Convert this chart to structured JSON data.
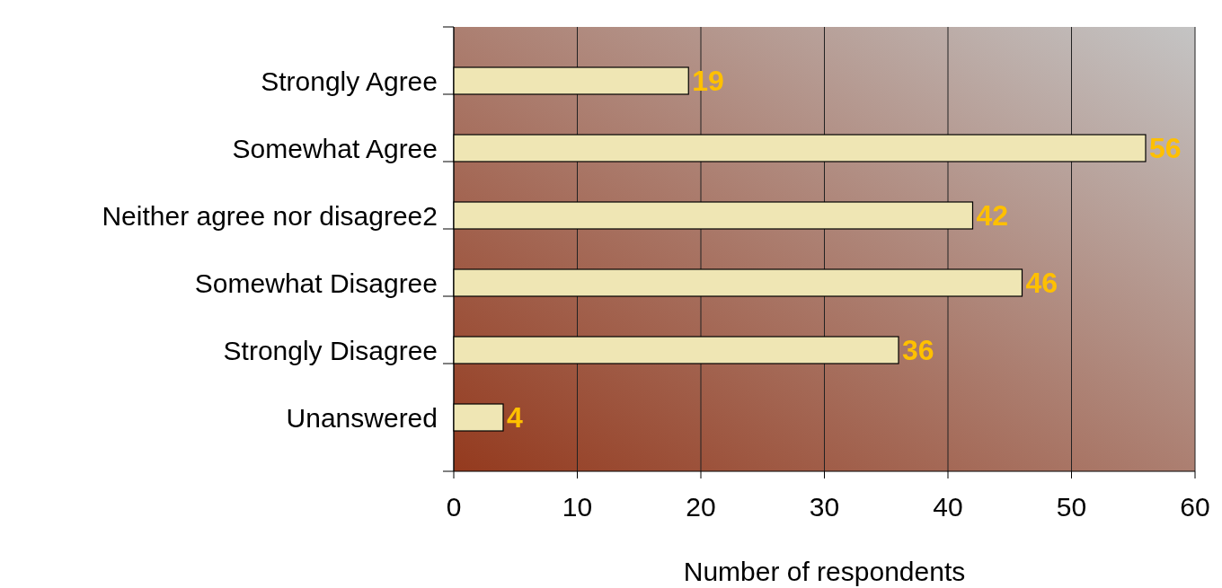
{
  "chart_data": {
    "type": "bar",
    "orientation": "horizontal",
    "categories": [
      "Strongly Agree",
      "Somewhat Agree",
      "Neither agree nor disagree2",
      "Somewhat Disagree",
      "Strongly Disagree",
      "Unanswered"
    ],
    "values": [
      19,
      56,
      42,
      46,
      36,
      4
    ],
    "color": "#efe6b4",
    "xlim": [
      0,
      60
    ],
    "xticks": [
      0,
      10,
      20,
      30,
      40,
      50,
      60
    ],
    "xlabel": "Number of respondents",
    "data_labels": true,
    "grid": "x"
  }
}
